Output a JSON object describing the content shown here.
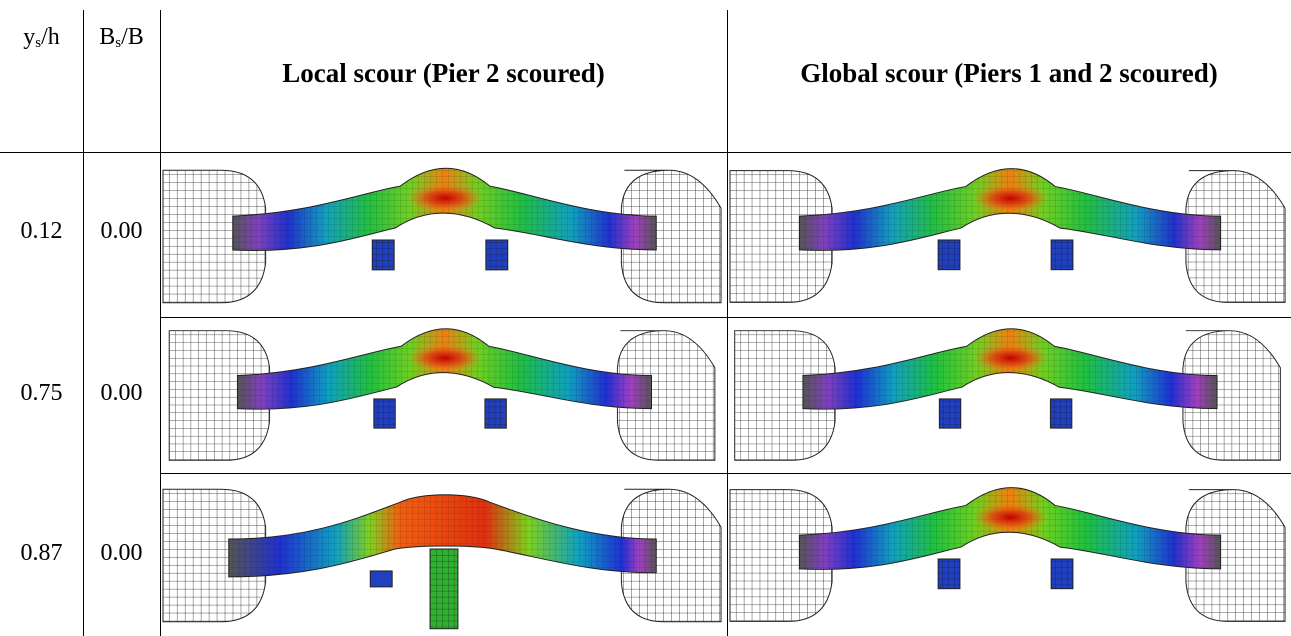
{
  "table": {
    "header": [
      [
        "y",
        "s",
        "/h"
      ],
      [
        "B",
        "s",
        "/B"
      ],
      [
        "Local scour (Pier 2 scoured)"
      ],
      [
        "Global scour (Piers 1 and 2 scoured)"
      ]
    ],
    "rows": [
      [
        "0.12",
        "0.00"
      ],
      [
        "0.75",
        "0.00"
      ],
      [
        "0.87",
        "0.00"
      ]
    ]
  }
}
